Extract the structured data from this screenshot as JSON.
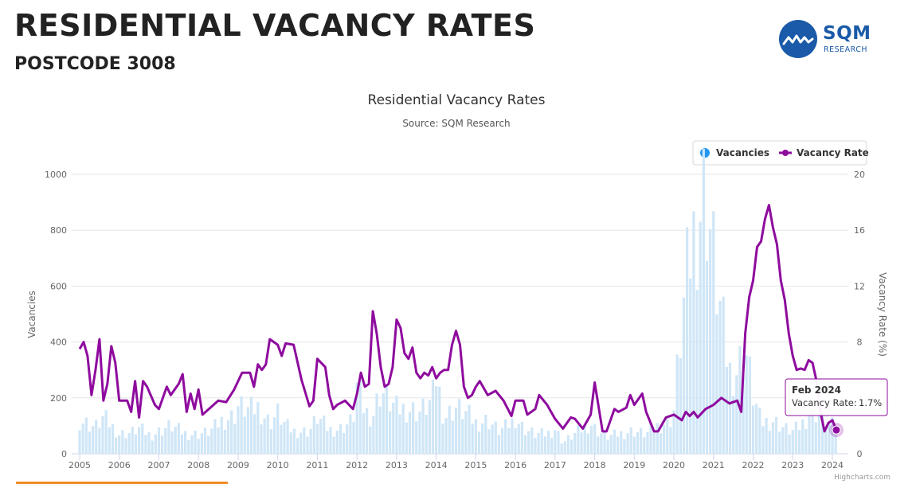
{
  "header": {
    "title": "RESIDENTIAL VACANCY RATES",
    "subtitle": "POSTCODE 3008"
  },
  "brand": {
    "name": "SQM",
    "sub": "RESEARCH",
    "color": "#1a5aa8"
  },
  "chart_data": {
    "type": "bar",
    "title": "Residential Vacancy Rates",
    "subtitle": "Source: SQM Research",
    "credits": "Highcharts.com",
    "legend": {
      "placement": "top-right",
      "items": [
        "Vacancies",
        "Vacancy Rate"
      ]
    },
    "x_ticks": [
      "2005",
      "2006",
      "2007",
      "2008",
      "2009",
      "2010",
      "2011",
      "2012",
      "2013",
      "2014",
      "2015",
      "2016",
      "2017",
      "2018",
      "2019",
      "2020",
      "2021",
      "2022",
      "2023",
      "2024"
    ],
    "y_left": {
      "label": "Vacancies",
      "ticks": [
        "0",
        "200",
        "400",
        "600",
        "800",
        "1000"
      ],
      "range": [
        0,
        1000
      ]
    },
    "y_right": {
      "label": "Vacancy Rate (%)",
      "ticks": [
        "0",
        "4",
        "8",
        "12",
        "16",
        "20"
      ],
      "range": [
        0,
        20
      ]
    },
    "grid": true,
    "colors": {
      "vacancies": "#cfe6f7",
      "legend_vacancies": "#2196f3",
      "rate": "#8e0b9e"
    },
    "tooltip": {
      "date": "Feb 2024",
      "label": "Vacancy Rate:",
      "value": "1.7%"
    },
    "series": [
      {
        "name": "Vacancies",
        "type": "bar",
        "anchors": [
          [
            2005.0,
            120
          ],
          [
            2005.4,
            95
          ],
          [
            2005.6,
            130
          ],
          [
            2006.0,
            70
          ],
          [
            2006.3,
            75
          ],
          [
            2006.5,
            90
          ],
          [
            2006.8,
            65
          ],
          [
            2007.0,
            80
          ],
          [
            2007.3,
            100
          ],
          [
            2007.7,
            70
          ],
          [
            2008.0,
            70
          ],
          [
            2008.3,
            80
          ],
          [
            2008.6,
            120
          ],
          [
            2008.9,
            135
          ],
          [
            2009.0,
            170
          ],
          [
            2009.3,
            155
          ],
          [
            2009.5,
            165
          ],
          [
            2009.8,
            110
          ],
          [
            2010.0,
            145
          ],
          [
            2010.2,
            100
          ],
          [
            2010.4,
            80
          ],
          [
            2010.8,
            80
          ],
          [
            2011.0,
            130
          ],
          [
            2011.3,
            85
          ],
          [
            2011.6,
            90
          ],
          [
            2011.9,
            120
          ],
          [
            2012.0,
            240
          ],
          [
            2012.2,
            150
          ],
          [
            2012.4,
            135
          ],
          [
            2012.6,
            230
          ],
          [
            2012.8,
            190
          ],
          [
            2013.0,
            160
          ],
          [
            2013.3,
            160
          ],
          [
            2013.6,
            150
          ],
          [
            2013.9,
            190
          ],
          [
            2014.0,
            275
          ],
          [
            2014.2,
            130
          ],
          [
            2014.5,
            165
          ],
          [
            2014.8,
            140
          ],
          [
            2015.0,
            110
          ],
          [
            2015.3,
            120
          ],
          [
            2015.6,
            80
          ],
          [
            2015.9,
            110
          ],
          [
            2016.0,
            130
          ],
          [
            2016.2,
            90
          ],
          [
            2016.5,
            70
          ],
          [
            2016.8,
            70
          ],
          [
            2017.0,
            90
          ],
          [
            2017.2,
            40
          ],
          [
            2017.5,
            70
          ],
          [
            2017.9,
            110
          ],
          [
            2018.0,
            90
          ],
          [
            2018.3,
            60
          ],
          [
            2018.6,
            70
          ],
          [
            2018.9,
            80
          ],
          [
            2019.0,
            80
          ],
          [
            2019.3,
            70
          ],
          [
            2019.6,
            100
          ],
          [
            2019.9,
            120
          ],
          [
            2020.0,
            155
          ],
          [
            2020.2,
            470
          ],
          [
            2020.4,
            700
          ],
          [
            2020.6,
            850
          ],
          [
            2020.8,
            950
          ],
          [
            2021.0,
            700
          ],
          [
            2021.2,
            480
          ],
          [
            2021.4,
            290
          ],
          [
            2021.6,
            300
          ],
          [
            2021.8,
            380
          ],
          [
            2022.0,
            210
          ],
          [
            2022.2,
            110
          ],
          [
            2022.5,
            120
          ],
          [
            2022.8,
            90
          ],
          [
            2023.0,
            80
          ],
          [
            2023.2,
            100
          ],
          [
            2023.5,
            160
          ],
          [
            2023.8,
            120
          ],
          [
            2024.0,
            100
          ],
          [
            2024.1,
            85
          ]
        ]
      },
      {
        "name": "Vacancy Rate",
        "type": "line",
        "points": [
          [
            2005.0,
            7.5
          ],
          [
            2005.1,
            8
          ],
          [
            2005.2,
            7
          ],
          [
            2005.3,
            4.2
          ],
          [
            2005.4,
            6
          ],
          [
            2005.5,
            8.2
          ],
          [
            2005.6,
            3.8
          ],
          [
            2005.7,
            5
          ],
          [
            2005.8,
            7.7
          ],
          [
            2005.9,
            6.5
          ],
          [
            2006.0,
            3.8
          ],
          [
            2006.2,
            3.8
          ],
          [
            2006.3,
            3.0
          ],
          [
            2006.4,
            5.2
          ],
          [
            2006.5,
            2.6
          ],
          [
            2006.6,
            5.2
          ],
          [
            2006.7,
            4.8
          ],
          [
            2006.9,
            3.5
          ],
          [
            2007.0,
            3.2
          ],
          [
            2007.2,
            4.8
          ],
          [
            2007.3,
            4.2
          ],
          [
            2007.5,
            5
          ],
          [
            2007.6,
            5.7
          ],
          [
            2007.7,
            3
          ],
          [
            2007.8,
            4.3
          ],
          [
            2007.9,
            3.2
          ],
          [
            2008.0,
            4.6
          ],
          [
            2008.1,
            2.8
          ],
          [
            2008.3,
            3.3
          ],
          [
            2008.5,
            3.8
          ],
          [
            2008.7,
            3.7
          ],
          [
            2008.9,
            4.6
          ],
          [
            2009.1,
            5.8
          ],
          [
            2009.3,
            5.8
          ],
          [
            2009.4,
            4.8
          ],
          [
            2009.5,
            6.4
          ],
          [
            2009.6,
            6
          ],
          [
            2009.7,
            6.4
          ],
          [
            2009.8,
            8.2
          ],
          [
            2010.0,
            7.8
          ],
          [
            2010.1,
            7
          ],
          [
            2010.2,
            7.9
          ],
          [
            2010.4,
            7.8
          ],
          [
            2010.6,
            5.3
          ],
          [
            2010.8,
            3.4
          ],
          [
            2010.9,
            3.8
          ],
          [
            2011.0,
            6.8
          ],
          [
            2011.2,
            6.2
          ],
          [
            2011.3,
            4.2
          ],
          [
            2011.4,
            3.2
          ],
          [
            2011.5,
            3.5
          ],
          [
            2011.7,
            3.8
          ],
          [
            2011.9,
            3.2
          ],
          [
            2012.0,
            4.3
          ],
          [
            2012.1,
            5.8
          ],
          [
            2012.2,
            4.8
          ],
          [
            2012.3,
            5
          ],
          [
            2012.4,
            10.2
          ],
          [
            2012.5,
            8.6
          ],
          [
            2012.6,
            6.2
          ],
          [
            2012.7,
            4.8
          ],
          [
            2012.8,
            5
          ],
          [
            2012.9,
            6.2
          ],
          [
            2013.0,
            9.6
          ],
          [
            2013.1,
            9
          ],
          [
            2013.2,
            7.2
          ],
          [
            2013.3,
            6.8
          ],
          [
            2013.4,
            7.6
          ],
          [
            2013.5,
            5.8
          ],
          [
            2013.6,
            5.4
          ],
          [
            2013.7,
            5.8
          ],
          [
            2013.8,
            5.6
          ],
          [
            2013.9,
            6.2
          ],
          [
            2014.0,
            5.4
          ],
          [
            2014.1,
            5.8
          ],
          [
            2014.2,
            6.0
          ],
          [
            2014.3,
            6.0
          ],
          [
            2014.4,
            7.8
          ],
          [
            2014.5,
            8.8
          ],
          [
            2014.6,
            7.8
          ],
          [
            2014.7,
            4.8
          ],
          [
            2014.8,
            4
          ],
          [
            2014.9,
            4.2
          ],
          [
            2015.0,
            4.8
          ],
          [
            2015.1,
            5.2
          ],
          [
            2015.3,
            4.2
          ],
          [
            2015.5,
            4.5
          ],
          [
            2015.7,
            3.8
          ],
          [
            2015.9,
            2.7
          ],
          [
            2016.0,
            3.8
          ],
          [
            2016.2,
            3.8
          ],
          [
            2016.3,
            2.8
          ],
          [
            2016.5,
            3.2
          ],
          [
            2016.6,
            4.2
          ],
          [
            2016.8,
            3.5
          ],
          [
            2017.0,
            2.5
          ],
          [
            2017.2,
            1.8
          ],
          [
            2017.4,
            2.6
          ],
          [
            2017.5,
            2.5
          ],
          [
            2017.7,
            1.8
          ],
          [
            2017.9,
            2.8
          ],
          [
            2018.0,
            5.1
          ],
          [
            2018.2,
            1.6
          ],
          [
            2018.3,
            1.6
          ],
          [
            2018.5,
            3.2
          ],
          [
            2018.6,
            3.0
          ],
          [
            2018.8,
            3.3
          ],
          [
            2018.9,
            4.2
          ],
          [
            2019.0,
            3.5
          ],
          [
            2019.2,
            4.3
          ],
          [
            2019.3,
            3.0
          ],
          [
            2019.5,
            1.6
          ],
          [
            2019.6,
            1.6
          ],
          [
            2019.8,
            2.6
          ],
          [
            2020.0,
            2.8
          ],
          [
            2020.2,
            2.4
          ],
          [
            2020.3,
            3.0
          ],
          [
            2020.4,
            2.7
          ],
          [
            2020.5,
            3.0
          ],
          [
            2020.6,
            2.6
          ],
          [
            2020.8,
            3.2
          ],
          [
            2021.0,
            3.5
          ],
          [
            2021.2,
            4.0
          ],
          [
            2021.4,
            3.6
          ],
          [
            2021.6,
            3.8
          ],
          [
            2021.7,
            3.0
          ],
          [
            2021.8,
            8.6
          ],
          [
            2021.9,
            11.2
          ],
          [
            2022.0,
            12.4
          ],
          [
            2022.1,
            14.8
          ],
          [
            2022.2,
            15.2
          ],
          [
            2022.3,
            16.8
          ],
          [
            2022.4,
            17.8
          ],
          [
            2022.5,
            16.2
          ],
          [
            2022.6,
            15
          ],
          [
            2022.7,
            12.4
          ],
          [
            2022.8,
            11
          ],
          [
            2022.9,
            8.6
          ],
          [
            2023.0,
            7
          ],
          [
            2023.1,
            6
          ],
          [
            2023.2,
            6.1
          ],
          [
            2023.3,
            6
          ],
          [
            2023.4,
            6.7
          ],
          [
            2023.5,
            6.5
          ],
          [
            2023.6,
            5.2
          ],
          [
            2023.7,
            3
          ],
          [
            2023.8,
            1.6
          ],
          [
            2023.9,
            2.2
          ],
          [
            2024.0,
            2.4
          ],
          [
            2024.1,
            1.7
          ]
        ]
      }
    ],
    "xlim": [
      2005.0,
      2024.2
    ]
  }
}
